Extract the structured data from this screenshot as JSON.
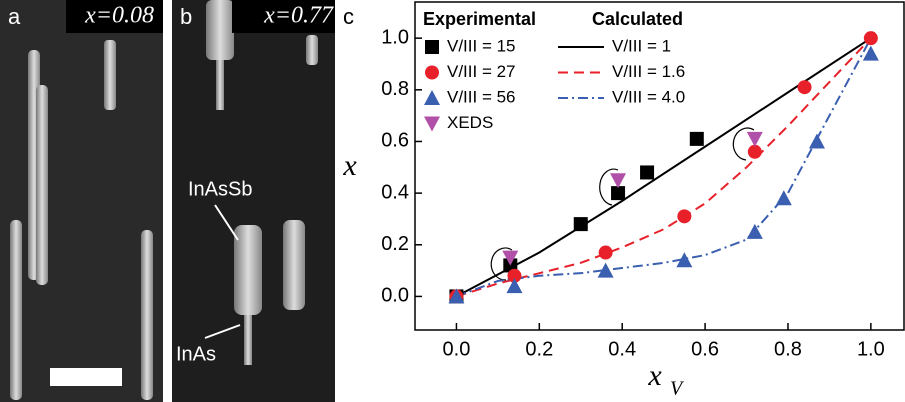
{
  "panels": [
    {
      "label": "a",
      "composition": "x=0.08"
    },
    {
      "label": "b",
      "composition": "x=0.77",
      "annotations": [
        "InAsSb",
        "InAs"
      ]
    }
  ],
  "chart_data": {
    "type": "scatter",
    "panel_label": "c",
    "y_label": "x",
    "x_label": "x",
    "x_label_sub": "V",
    "xlim": [
      -0.1,
      1.08
    ],
    "ylim": [
      -0.13,
      1.14
    ],
    "xticks": [
      {
        "value": 0,
        "label": "0.0"
      },
      {
        "value": 0.2,
        "label": "0.2"
      },
      {
        "value": 0.4,
        "label": "0.4"
      },
      {
        "value": 0.6,
        "label": "0.6"
      },
      {
        "value": 0.8,
        "label": "0.8"
      },
      {
        "value": 1,
        "label": "1.0"
      }
    ],
    "yticks": [
      {
        "value": 0,
        "label": "0.0"
      },
      {
        "value": 0.2,
        "label": "0.2"
      },
      {
        "value": 0.4,
        "label": "0.4"
      },
      {
        "value": 0.6,
        "label": "0.6"
      },
      {
        "value": 0.8,
        "label": "0.8"
      },
      {
        "value": 1,
        "label": "1.0"
      }
    ],
    "legend_titles": {
      "marker": "Experimental",
      "line": "Calculated"
    },
    "series": [
      {
        "name": "V/III = 15",
        "style": "marker",
        "marker": "square",
        "color": "#000000",
        "x": [
          0,
          0.13,
          0.3,
          0.39,
          0.46,
          0.58
        ],
        "values": [
          0,
          0.12,
          0.28,
          0.4,
          0.48,
          0.61
        ]
      },
      {
        "name": "V/III = 27",
        "style": "marker",
        "marker": "circle",
        "color": "#e8202a",
        "x": [
          0,
          0.14,
          0.36,
          0.55,
          0.72,
          0.84,
          1.0
        ],
        "values": [
          0,
          0.08,
          0.17,
          0.31,
          0.56,
          0.81,
          1.0
        ]
      },
      {
        "name": "V/III = 56",
        "style": "marker",
        "marker": "triangle",
        "color": "#3a5fb0",
        "x": [
          0,
          0.14,
          0.36,
          0.55,
          0.72,
          0.79,
          0.87,
          1.0
        ],
        "values": [
          0,
          0.04,
          0.1,
          0.14,
          0.25,
          0.38,
          0.6,
          0.94
        ]
      },
      {
        "name": "XEDS",
        "style": "marker",
        "marker": "down-triangle",
        "color": "#b050a8",
        "x": [
          0.13,
          0.39,
          0.72
        ],
        "values": [
          0.15,
          0.45,
          0.61
        ]
      },
      {
        "name": "V/III = 1",
        "style": "line",
        "dash": "none",
        "color": "#000000",
        "x": [
          0,
          0.2,
          0.4,
          0.6,
          0.8,
          1.0
        ],
        "values": [
          0,
          0.17,
          0.37,
          0.58,
          0.79,
          1.0
        ]
      },
      {
        "name": "V/III = 1.6",
        "style": "line",
        "dash": "10 6",
        "color": "#e8202a",
        "x": [
          0,
          0.1,
          0.2,
          0.3,
          0.4,
          0.5,
          0.6,
          0.7,
          0.8,
          0.9,
          1.0
        ],
        "values": [
          0,
          0.05,
          0.09,
          0.13,
          0.19,
          0.26,
          0.36,
          0.5,
          0.66,
          0.83,
          1.0
        ]
      },
      {
        "name": "V/III = 4.0",
        "style": "line",
        "dash": "10 4 2 4",
        "color": "#3a5fb0",
        "x": [
          0,
          0.1,
          0.2,
          0.3,
          0.4,
          0.5,
          0.6,
          0.7,
          0.8,
          0.9,
          1.0
        ],
        "values": [
          0,
          0.06,
          0.08,
          0.09,
          0.11,
          0.13,
          0.16,
          0.22,
          0.4,
          0.7,
          1.0
        ]
      }
    ]
  }
}
